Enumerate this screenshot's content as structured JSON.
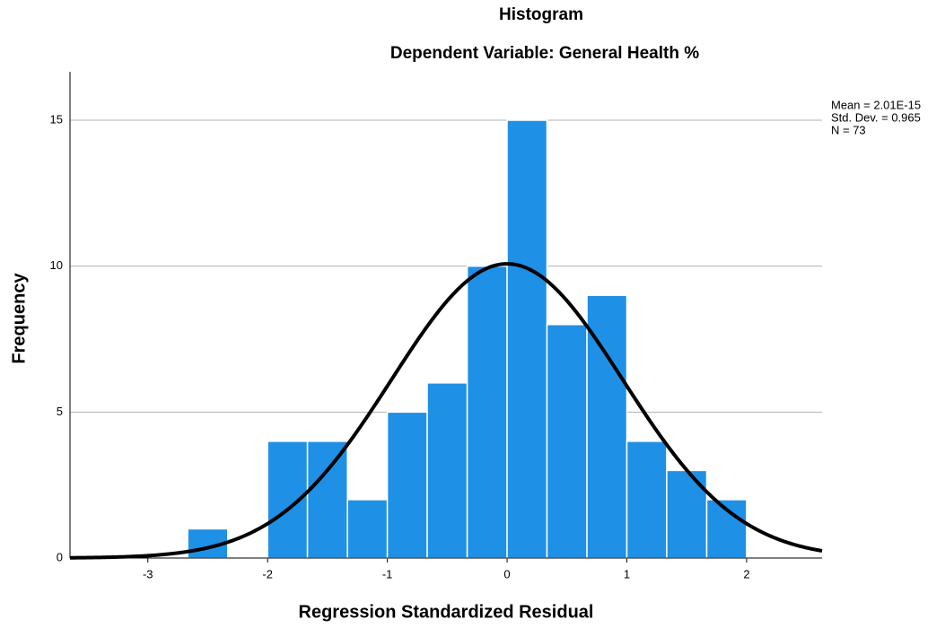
{
  "chart_data": {
    "type": "histogram",
    "title": "Histogram",
    "subtitle": "Dependent Variable: General Health %",
    "x_label": "Regression Standardized Residual",
    "y_label": "Frequency",
    "bins": [
      -2.667,
      -2.333,
      -2,
      -1.667,
      -1.333,
      -1,
      -0.667,
      -0.333,
      0,
      0.333,
      0.667,
      1,
      1.333,
      1.667,
      2
    ],
    "counts": [
      1,
      0,
      4,
      4,
      2,
      5,
      6,
      10,
      15,
      8,
      9,
      4,
      3,
      2
    ],
    "color": "#1e90e6",
    "xlim": [
      -3.65,
      2.63
    ],
    "xticks": [
      -3,
      -2,
      -1,
      0,
      1,
      2
    ],
    "ylim": [
      0,
      16.66
    ],
    "yticks": [
      0,
      5,
      10,
      15
    ],
    "grid": true,
    "stats": [
      {
        "value": 2.01e-15,
        "label": "Mean = 2.01E-15"
      },
      {
        "value": 0.965,
        "label": "Std. Dev. = 0.965"
      },
      {
        "value": 73,
        "label": "N = 73"
      }
    ]
  }
}
